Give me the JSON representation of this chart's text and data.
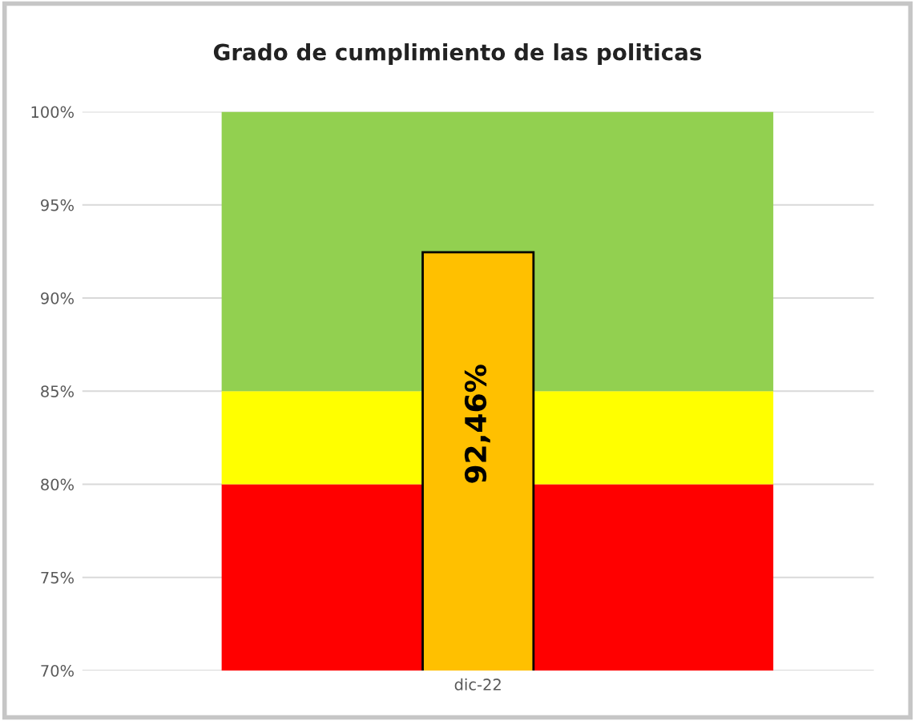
{
  "chart_data": {
    "type": "bar",
    "title": "Grado de cumplimiento de las politicas",
    "categories": [
      "dic-22"
    ],
    "series": [
      {
        "color": "#ffc000",
        "values": [
          92.46
        ],
        "value_labels": [
          "92,46%"
        ]
      }
    ],
    "ylim": [
      70,
      100
    ],
    "yticks": [
      {
        "value": 70,
        "label": "70%"
      },
      {
        "value": 75,
        "label": "75%"
      },
      {
        "value": 80,
        "label": "80%"
      },
      {
        "value": 85,
        "label": "85%"
      },
      {
        "value": 90,
        "label": "90%"
      },
      {
        "value": 95,
        "label": "95%"
      },
      {
        "value": 100,
        "label": "100%"
      }
    ],
    "bands": [
      {
        "axis": "y",
        "from": 70,
        "to": 80,
        "color": "#ff0000"
      },
      {
        "axis": "y",
        "from": 80,
        "to": 85,
        "color": "#ffff00"
      },
      {
        "axis": "y",
        "from": 85,
        "to": 100,
        "color": "#92d050"
      }
    ],
    "grid": "y"
  }
}
